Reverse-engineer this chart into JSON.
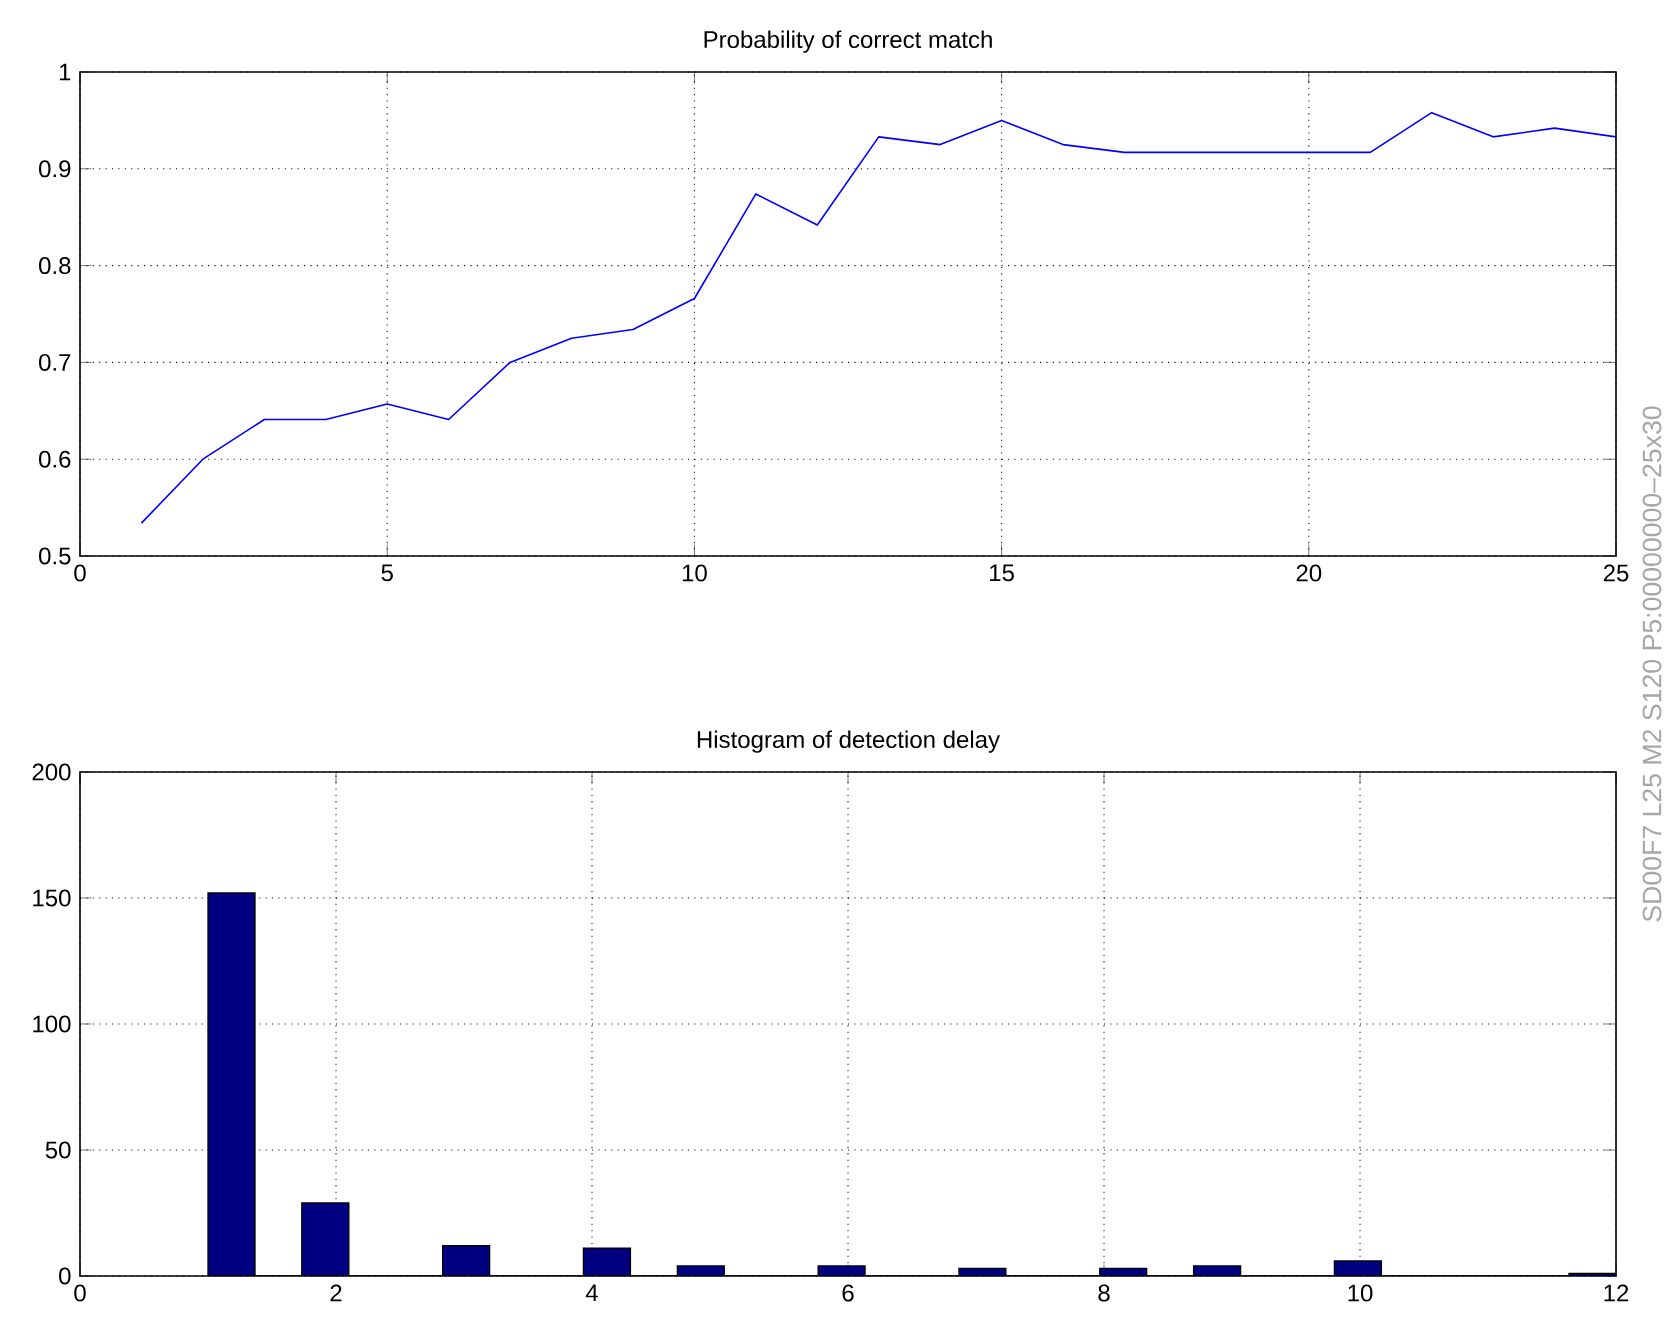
{
  "chart_data": [
    {
      "type": "line",
      "title": "Probability of correct match",
      "x": [
        1,
        2,
        3,
        4,
        5,
        6,
        7,
        8,
        9,
        10,
        11,
        12,
        13,
        14,
        15,
        16,
        17,
        18,
        19,
        20,
        21,
        22,
        23,
        24,
        25
      ],
      "series": [
        {
          "color": "#0000ff",
          "values": [
            0.534,
            0.6,
            0.641,
            0.641,
            0.657,
            0.641,
            0.7,
            0.725,
            0.734,
            0.766,
            0.874,
            0.842,
            0.933,
            0.925,
            0.95,
            0.925,
            0.917,
            0.917,
            0.917,
            0.917,
            0.917,
            0.958,
            0.933,
            0.942,
            0.933
          ]
        }
      ],
      "xlim": [
        0,
        25
      ],
      "ylim": [
        0.5,
        1
      ],
      "xticks": [
        0,
        5,
        10,
        15,
        20,
        25
      ],
      "yticks": [
        0.5,
        0.6,
        0.7,
        0.8,
        0.9,
        1
      ],
      "grid": true
    },
    {
      "type": "histogram",
      "title": "Histogram of detection delay",
      "color": "#000080",
      "bins": [
        1,
        1.367,
        1.733,
        2.1,
        2.467,
        2.833,
        3.2,
        3.567,
        3.933,
        4.3,
        4.667,
        5.033,
        5.4,
        5.767,
        6.133,
        6.5,
        6.867,
        7.233,
        7.6,
        7.967,
        8.333,
        8.7,
        9.067,
        9.433,
        9.8,
        10.167,
        10.533,
        10.9,
        11.267,
        11.633,
        12
      ],
      "values": [
        152,
        0,
        29,
        0,
        0,
        12,
        0,
        0,
        11,
        0,
        4,
        0,
        0,
        4,
        0,
        0,
        3,
        0,
        0,
        3,
        0,
        4,
        0,
        0,
        6,
        0,
        0,
        0,
        0,
        1
      ],
      "xlim": [
        0,
        12
      ],
      "ylim": [
        0,
        200
      ],
      "xticks": [
        0,
        2,
        4,
        6,
        8,
        10,
        12
      ],
      "yticks": [
        0,
        50,
        100,
        150,
        200
      ],
      "grid": true,
      "annotations": [
        "SD00F7 L25 M2 S120 P5:00000000–25x30"
      ]
    }
  ]
}
